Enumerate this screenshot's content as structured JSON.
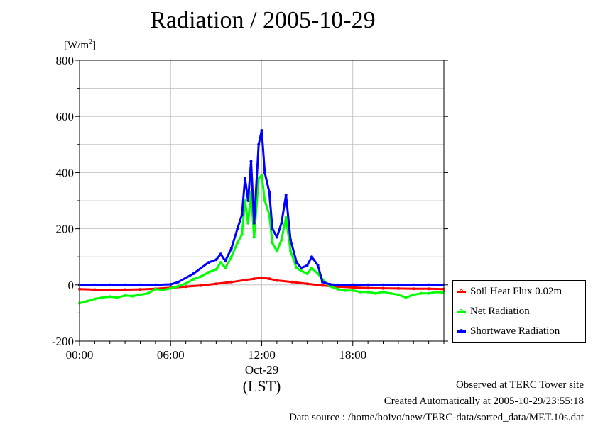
{
  "chart_data": {
    "type": "line",
    "title": "Radiation / 2005-10-29",
    "ylabel": "[W/m2]",
    "ylabel_base": "[W/m",
    "ylabel_sup": "2",
    "ylabel_close": "]",
    "ylim": [
      -200,
      800
    ],
    "y_ticks": [
      -200,
      0,
      200,
      400,
      600,
      800
    ],
    "x_hours_range": [
      0,
      24
    ],
    "x_ticks": [
      {
        "hour": 0,
        "label": "00:00"
      },
      {
        "hour": 6,
        "label": "06:00"
      },
      {
        "hour": 12,
        "label": "12:00"
      },
      {
        "hour": 18,
        "label": "18:00"
      }
    ],
    "x_date_label": "Oct-29",
    "x_axis_label": "(LST)",
    "grid": true,
    "legend_position": "right-bottom",
    "series": [
      {
        "name": "Soil Heat Flux 0.02m",
        "color": "#ff0000",
        "points": [
          [
            0,
            -15
          ],
          [
            1,
            -17
          ],
          [
            2,
            -18
          ],
          [
            3,
            -17
          ],
          [
            4,
            -16
          ],
          [
            5,
            -14
          ],
          [
            6,
            -10
          ],
          [
            7,
            -6
          ],
          [
            8,
            -2
          ],
          [
            9,
            4
          ],
          [
            10,
            10
          ],
          [
            11,
            18
          ],
          [
            11.5,
            22
          ],
          [
            12,
            25
          ],
          [
            12.5,
            22
          ],
          [
            13,
            16
          ],
          [
            14,
            10
          ],
          [
            15,
            4
          ],
          [
            16,
            -2
          ],
          [
            17,
            -6
          ],
          [
            18,
            -9
          ],
          [
            19,
            -11
          ],
          [
            20,
            -12
          ],
          [
            21,
            -13
          ],
          [
            22,
            -14
          ],
          [
            23,
            -14
          ],
          [
            24,
            -15
          ]
        ]
      },
      {
        "name": "Net Radiation",
        "color": "#00ff00",
        "points": [
          [
            0,
            -65
          ],
          [
            0.5,
            -58
          ],
          [
            1,
            -50
          ],
          [
            1.5,
            -45
          ],
          [
            2,
            -42
          ],
          [
            2.5,
            -45
          ],
          [
            3,
            -38
          ],
          [
            3.5,
            -40
          ],
          [
            4,
            -35
          ],
          [
            4.5,
            -30
          ],
          [
            5,
            -15
          ],
          [
            5.5,
            -18
          ],
          [
            6,
            -12
          ],
          [
            6.5,
            -5
          ],
          [
            7,
            5
          ],
          [
            7.5,
            20
          ],
          [
            8,
            30
          ],
          [
            8.5,
            45
          ],
          [
            9,
            55
          ],
          [
            9.3,
            80
          ],
          [
            9.6,
            60
          ],
          [
            10,
            100
          ],
          [
            10.4,
            150
          ],
          [
            10.7,
            180
          ],
          [
            10.9,
            300
          ],
          [
            11.1,
            220
          ],
          [
            11.3,
            330
          ],
          [
            11.5,
            170
          ],
          [
            11.8,
            380
          ],
          [
            12,
            390
          ],
          [
            12.2,
            300
          ],
          [
            12.5,
            250
          ],
          [
            12.7,
            150
          ],
          [
            13,
            120
          ],
          [
            13.3,
            160
          ],
          [
            13.6,
            240
          ],
          [
            13.9,
            120
          ],
          [
            14.3,
            60
          ],
          [
            14.6,
            50
          ],
          [
            15,
            40
          ],
          [
            15.3,
            60
          ],
          [
            15.7,
            40
          ],
          [
            16,
            20
          ],
          [
            16.5,
            -5
          ],
          [
            17,
            -15
          ],
          [
            17.5,
            -20
          ],
          [
            18,
            -20
          ],
          [
            18.5,
            -25
          ],
          [
            19,
            -25
          ],
          [
            19.5,
            -30
          ],
          [
            20,
            -25
          ],
          [
            20.5,
            -30
          ],
          [
            21,
            -35
          ],
          [
            21.5,
            -45
          ],
          [
            22,
            -35
          ],
          [
            22.5,
            -30
          ],
          [
            23,
            -30
          ],
          [
            23.5,
            -25
          ],
          [
            24,
            -28
          ]
        ]
      },
      {
        "name": "Shortwave Radiation",
        "color": "#0000ff",
        "points": [
          [
            0,
            0
          ],
          [
            1,
            0
          ],
          [
            2,
            0
          ],
          [
            3,
            0
          ],
          [
            4,
            0
          ],
          [
            5,
            0
          ],
          [
            6,
            2
          ],
          [
            6.5,
            10
          ],
          [
            7,
            25
          ],
          [
            7.5,
            40
          ],
          [
            8,
            60
          ],
          [
            8.5,
            80
          ],
          [
            9,
            90
          ],
          [
            9.3,
            110
          ],
          [
            9.6,
            85
          ],
          [
            10,
            130
          ],
          [
            10.4,
            200
          ],
          [
            10.7,
            250
          ],
          [
            10.9,
            380
          ],
          [
            11.1,
            300
          ],
          [
            11.3,
            440
          ],
          [
            11.5,
            220
          ],
          [
            11.8,
            500
          ],
          [
            12,
            550
          ],
          [
            12.2,
            400
          ],
          [
            12.5,
            330
          ],
          [
            12.7,
            200
          ],
          [
            13,
            170
          ],
          [
            13.3,
            220
          ],
          [
            13.6,
            320
          ],
          [
            13.9,
            160
          ],
          [
            14.3,
            80
          ],
          [
            14.6,
            60
          ],
          [
            15,
            70
          ],
          [
            15.3,
            100
          ],
          [
            15.7,
            70
          ],
          [
            16,
            10
          ],
          [
            16.5,
            2
          ],
          [
            17,
            0
          ],
          [
            18,
            0
          ],
          [
            19,
            0
          ],
          [
            20,
            0
          ],
          [
            21,
            0
          ],
          [
            22,
            0
          ],
          [
            23,
            0
          ],
          [
            24,
            0
          ]
        ]
      }
    ]
  },
  "footer": {
    "line1": "Observed at TERC Tower site",
    "line2": "Created Automatically at 2005-10-29/23:55:18",
    "line3": "Data source : /home/hoivo/new/TERC-data/sorted_data/MET.10s.dat"
  }
}
